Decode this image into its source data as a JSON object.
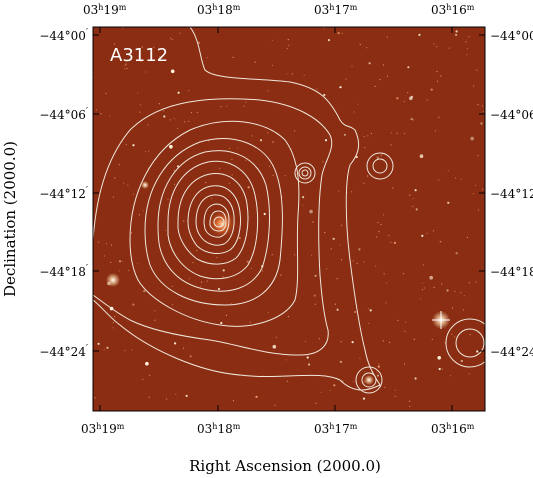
{
  "figure": {
    "cluster_label": "A3112",
    "xlabel": "Right Ascension (2000.0)",
    "ylabel": "Declination (2000.0)",
    "image_colors": {
      "background": "#8a2d12",
      "contour": "#f0e8dc",
      "star": "#fff6df"
    },
    "x_ticks": [
      {
        "h": "03",
        "m": "19"
      },
      {
        "h": "03",
        "m": "18"
      },
      {
        "h": "03",
        "m": "17"
      },
      {
        "h": "03",
        "m": "16"
      }
    ],
    "y_ticks": [
      {
        "deg": "−44°",
        "min": "00"
      },
      {
        "deg": "−44°",
        "min": "06"
      },
      {
        "deg": "−44°",
        "min": "12"
      },
      {
        "deg": "−44°",
        "min": "18"
      },
      {
        "deg": "−44°",
        "min": "24"
      }
    ]
  }
}
